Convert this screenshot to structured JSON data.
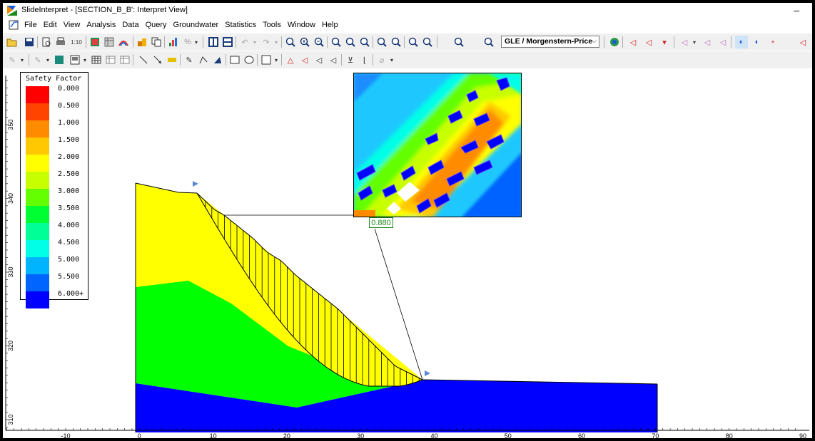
{
  "window": {
    "title": "SlideInterpret - [SECTION_B_B': Interpret View]",
    "minimize_glyph": "–"
  },
  "menu": [
    "File",
    "Edit",
    "View",
    "Analysis",
    "Data",
    "Query",
    "Groundwater",
    "Statistics",
    "Tools",
    "Window",
    "Help"
  ],
  "toolbar": {
    "method_select": "GLE / Morgenstern-Price",
    "scale_label": "1:10"
  },
  "legend": {
    "title": "Safety Factor",
    "items": [
      {
        "label": "0.000",
        "color": "#ff0000"
      },
      {
        "label": "0.500",
        "color": "#ff4400"
      },
      {
        "label": "1.000",
        "color": "#ff8c00"
      },
      {
        "label": "1.500",
        "color": "#ffc800"
      },
      {
        "label": "2.000",
        "color": "#ffff00"
      },
      {
        "label": "2.500",
        "color": "#c8ff00"
      },
      {
        "label": "3.000",
        "color": "#64ff00"
      },
      {
        "label": "3.500",
        "color": "#00ff32"
      },
      {
        "label": "4.000",
        "color": "#00ff96"
      },
      {
        "label": "4.500",
        "color": "#00ffe6"
      },
      {
        "label": "5.000",
        "color": "#00b4ff"
      },
      {
        "label": "5.500",
        "color": "#0064ff"
      },
      {
        "label": "6.000+",
        "color": "#0000ff"
      }
    ]
  },
  "slope_view": {
    "safety_factor_label": "0.880",
    "x_axis_labels": [
      "-10",
      "0",
      "10",
      "20",
      "30",
      "40",
      "50",
      "60",
      "70",
      "80",
      "90"
    ],
    "y_axis_labels": [
      "350",
      "340",
      "330",
      "320",
      "310"
    ],
    "materials": {
      "upper": {
        "color": "#ffff00"
      },
      "middle": {
        "color": "#00ff00"
      },
      "lower": {
        "color": "#0000ff"
      }
    }
  }
}
